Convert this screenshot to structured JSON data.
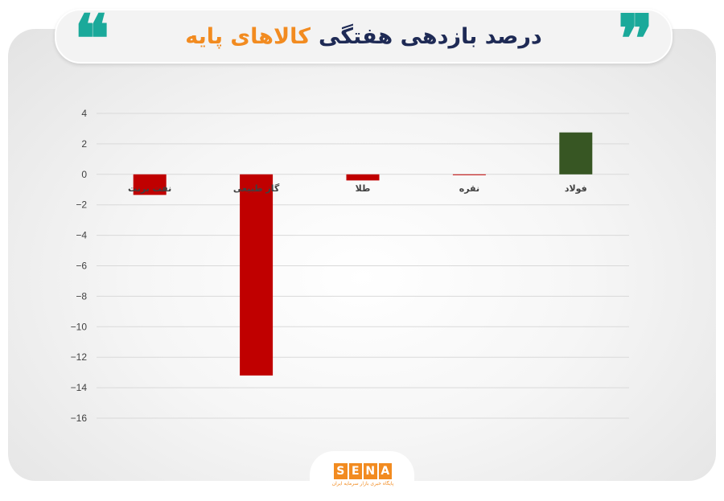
{
  "header": {
    "title_dark": "درصد بازدهی هفتگی",
    "title_orange": "کالاهای پایه",
    "quote_open": "❝",
    "quote_close": "❞"
  },
  "chart_data": {
    "type": "bar",
    "categories": [
      "فولاد",
      "نقره",
      "طلا",
      "گاز طبیعی",
      "نفت برنت"
    ],
    "values": [
      2.75,
      -0.05,
      -0.4,
      -13.2,
      -1.35
    ],
    "colors": [
      "#375623",
      "#c00000",
      "#c00000",
      "#c00000",
      "#c00000"
    ],
    "yticks": [
      "4",
      "2",
      "0",
      "−2",
      "−4",
      "−6",
      "−8",
      "−10",
      "−12",
      "−14",
      "−16"
    ],
    "ylim": [
      -16,
      4
    ],
    "grid": true,
    "title": "",
    "xlabel": "",
    "ylabel": ""
  },
  "logo": {
    "letters": [
      "S",
      "E",
      "N",
      "A"
    ],
    "subtitle": "پایگاه خبری بازار سرمایه ایران"
  }
}
